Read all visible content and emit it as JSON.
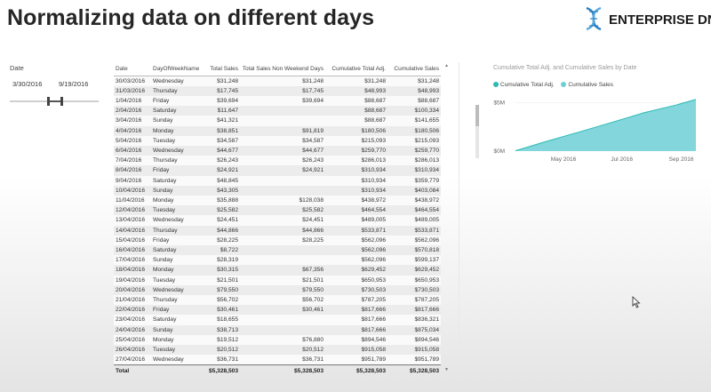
{
  "page": {
    "title": "Normalizing data on different days"
  },
  "brand": {
    "name": "ENTERPRISE DNA",
    "accent": "#2a7fc1"
  },
  "slicer": {
    "label": "Date",
    "start": "3/30/2016",
    "end": "9/19/2016"
  },
  "table": {
    "columns": [
      "Date",
      "DayOfWeekName",
      "Total Sales",
      "Total Sales Non Weekend Days",
      "Cumulative Total Adj.",
      "Cumulative Sales"
    ],
    "rows": [
      [
        "30/03/2016",
        "Wednesday",
        "$31,248",
        "$31,248",
        "$31,248",
        "$31,248"
      ],
      [
        "31/03/2016",
        "Thursday",
        "$17,745",
        "$17,745",
        "$48,993",
        "$48,993"
      ],
      [
        "1/04/2016",
        "Friday",
        "$39,694",
        "$39,694",
        "$88,687",
        "$88,687"
      ],
      [
        "2/04/2016",
        "Saturday",
        "$11,647",
        "",
        "$88,687",
        "$100,334"
      ],
      [
        "3/04/2016",
        "Sunday",
        "$41,321",
        "",
        "$88,687",
        "$141,655"
      ],
      [
        "4/04/2016",
        "Monday",
        "$38,851",
        "$91,819",
        "$180,506",
        "$180,506"
      ],
      [
        "5/04/2016",
        "Tuesday",
        "$34,587",
        "$34,587",
        "$215,093",
        "$215,093"
      ],
      [
        "6/04/2016",
        "Wednesday",
        "$44,677",
        "$44,677",
        "$259,770",
        "$259,770"
      ],
      [
        "7/04/2016",
        "Thursday",
        "$26,243",
        "$26,243",
        "$286,013",
        "$286,013"
      ],
      [
        "8/04/2016",
        "Friday",
        "$24,921",
        "$24,921",
        "$310,934",
        "$310,934"
      ],
      [
        "9/04/2016",
        "Saturday",
        "$48,845",
        "",
        "$310,934",
        "$359,779"
      ],
      [
        "10/04/2016",
        "Sunday",
        "$43,305",
        "",
        "$310,934",
        "$403,084"
      ],
      [
        "11/04/2016",
        "Monday",
        "$35,888",
        "$128,038",
        "$438,972",
        "$438,972"
      ],
      [
        "12/04/2016",
        "Tuesday",
        "$25,582",
        "$25,582",
        "$464,554",
        "$464,554"
      ],
      [
        "13/04/2016",
        "Wednesday",
        "$24,451",
        "$24,451",
        "$489,005",
        "$489,005"
      ],
      [
        "14/04/2016",
        "Thursday",
        "$44,866",
        "$44,866",
        "$533,871",
        "$533,871"
      ],
      [
        "15/04/2016",
        "Friday",
        "$28,225",
        "$28,225",
        "$562,096",
        "$562,096"
      ],
      [
        "16/04/2016",
        "Saturday",
        "$8,722",
        "",
        "$562,096",
        "$570,818"
      ],
      [
        "17/04/2016",
        "Sunday",
        "$28,319",
        "",
        "$562,096",
        "$599,137"
      ],
      [
        "18/04/2016",
        "Monday",
        "$30,315",
        "$67,356",
        "$629,452",
        "$629,452"
      ],
      [
        "19/04/2016",
        "Tuesday",
        "$21,501",
        "$21,501",
        "$650,953",
        "$650,953"
      ],
      [
        "20/04/2016",
        "Wednesday",
        "$79,550",
        "$79,550",
        "$730,503",
        "$730,503"
      ],
      [
        "21/04/2016",
        "Thursday",
        "$56,702",
        "$56,702",
        "$787,205",
        "$787,205"
      ],
      [
        "22/04/2016",
        "Friday",
        "$30,461",
        "$30,461",
        "$817,666",
        "$817,666"
      ],
      [
        "23/04/2016",
        "Saturday",
        "$18,655",
        "",
        "$817,666",
        "$836,321"
      ],
      [
        "24/04/2016",
        "Sunday",
        "$38,713",
        "",
        "$817,666",
        "$875,034"
      ],
      [
        "25/04/2016",
        "Monday",
        "$19,512",
        "$76,880",
        "$894,546",
        "$894,546"
      ],
      [
        "26/04/2016",
        "Tuesday",
        "$20,512",
        "$20,512",
        "$915,058",
        "$915,058"
      ],
      [
        "27/04/2016",
        "Wednesday",
        "$36,731",
        "$36,731",
        "$951,789",
        "$951,789"
      ]
    ],
    "total": [
      "Total",
      "",
      "$5,328,503",
      "$5,328,503",
      "$5,328,503",
      "$5,328,503"
    ]
  },
  "chart_data": {
    "type": "area",
    "title": "Cumulative Total Adj. and Cumulative Sales by Date",
    "legend": "top-left",
    "series": [
      {
        "name": "Cumulative Total Adj.",
        "color": "#2bbab1"
      },
      {
        "name": "Cumulative Sales",
        "color": "#6ccfd6"
      }
    ],
    "x": [
      "2016-03-30",
      "2016-04-27",
      "2016-05-31",
      "2016-06-30",
      "2016-07-31",
      "2016-08-31",
      "2016-09-19"
    ],
    "values": [
      31248,
      951789,
      2000000,
      2950000,
      3950000,
      4750000,
      5328503
    ],
    "x_ticks": [
      "May 2016",
      "Jul 2016",
      "Sep 2016"
    ],
    "y_ticks": [
      "$0M",
      "$5M"
    ],
    "ylim": [
      0,
      5500000
    ]
  }
}
